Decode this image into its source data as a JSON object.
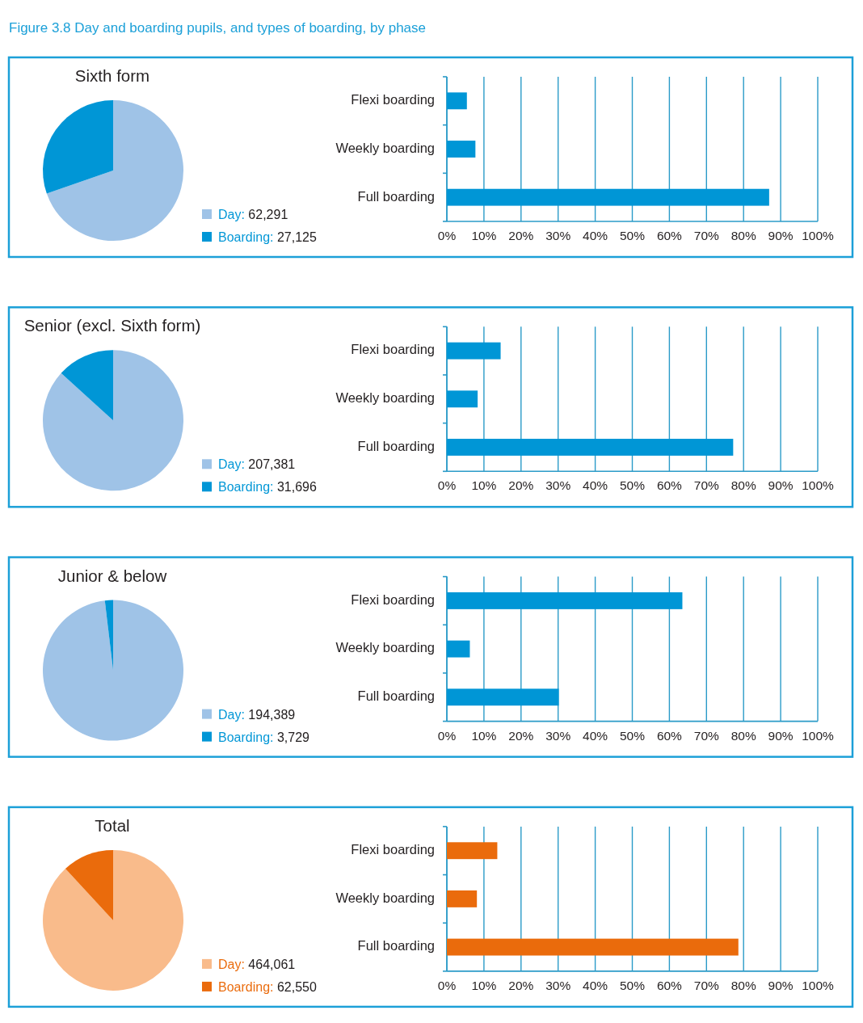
{
  "chart_data": [
    {
      "type": "pie",
      "title": "Sixth form",
      "annotations": [
        "Figure 3.8 Day and boarding pupils, and types of boarding, by phase"
      ],
      "categories": [
        "Day",
        "Boarding"
      ],
      "values": [
        62291,
        27125
      ],
      "colors": [
        "#9fc3e7",
        "#0096d6"
      ],
      "value_labels": [
        "62,291",
        "27,125"
      ],
      "legend": "bottom right"
    },
    {
      "type": "bar",
      "orientation": "horizontal",
      "categories": [
        "Flexi boarding",
        "Weekly boarding",
        "Full boarding"
      ],
      "values": [
        5.4,
        7.7,
        86.9
      ],
      "color": "#0096d6",
      "xlim": [
        0,
        100
      ],
      "xticks": [
        {
          "value": 0,
          "label": "0%"
        },
        {
          "value": 10,
          "label": "10%"
        },
        {
          "value": 20,
          "label": "20%"
        },
        {
          "value": 30,
          "label": "30%"
        },
        {
          "value": 40,
          "label": "40%"
        },
        {
          "value": 50,
          "label": "50%"
        },
        {
          "value": 60,
          "label": "60%"
        },
        {
          "value": 70,
          "label": "70%"
        },
        {
          "value": 80,
          "label": "80%"
        },
        {
          "value": 90,
          "label": "90%"
        },
        {
          "value": 100,
          "label": "100%"
        }
      ],
      "grid": "x"
    },
    {
      "type": "pie",
      "title": "Senior (excl. Sixth form)",
      "categories": [
        "Day",
        "Boarding"
      ],
      "values": [
        207381,
        31696
      ],
      "colors": [
        "#9fc3e7",
        "#0096d6"
      ],
      "value_labels": [
        "207,381",
        "31,696"
      ],
      "legend": "bottom right"
    },
    {
      "type": "bar",
      "orientation": "horizontal",
      "categories": [
        "Flexi boarding",
        "Weekly boarding",
        "Full boarding"
      ],
      "values": [
        14.5,
        8.3,
        77.2
      ],
      "color": "#0096d6",
      "xlim": [
        0,
        100
      ],
      "xticks": [
        {
          "value": 0,
          "label": "0%"
        },
        {
          "value": 10,
          "label": "10%"
        },
        {
          "value": 20,
          "label": "20%"
        },
        {
          "value": 30,
          "label": "30%"
        },
        {
          "value": 40,
          "label": "40%"
        },
        {
          "value": 50,
          "label": "50%"
        },
        {
          "value": 60,
          "label": "60%"
        },
        {
          "value": 70,
          "label": "70%"
        },
        {
          "value": 80,
          "label": "80%"
        },
        {
          "value": 90,
          "label": "90%"
        },
        {
          "value": 100,
          "label": "100%"
        }
      ],
      "grid": "x"
    },
    {
      "type": "pie",
      "title": "Junior & below",
      "categories": [
        "Day",
        "Boarding"
      ],
      "values": [
        194389,
        3729
      ],
      "colors": [
        "#9fc3e7",
        "#0096d6"
      ],
      "value_labels": [
        "194,389",
        "3,729"
      ],
      "legend": "bottom right"
    },
    {
      "type": "bar",
      "orientation": "horizontal",
      "categories": [
        "Flexi boarding",
        "Weekly boarding",
        "Full boarding"
      ],
      "values": [
        63.5,
        6.2,
        30.2
      ],
      "color": "#0096d6",
      "xlim": [
        0,
        100
      ],
      "xticks": [
        {
          "value": 0,
          "label": "0%"
        },
        {
          "value": 10,
          "label": "10%"
        },
        {
          "value": 20,
          "label": "20%"
        },
        {
          "value": 30,
          "label": "30%"
        },
        {
          "value": 40,
          "label": "40%"
        },
        {
          "value": 50,
          "label": "50%"
        },
        {
          "value": 60,
          "label": "60%"
        },
        {
          "value": 70,
          "label": "70%"
        },
        {
          "value": 80,
          "label": "80%"
        },
        {
          "value": 90,
          "label": "90%"
        },
        {
          "value": 100,
          "label": "100%"
        }
      ],
      "grid": "x"
    },
    {
      "type": "pie",
      "title": "Total",
      "categories": [
        "Day",
        "Boarding"
      ],
      "values": [
        464061,
        62550
      ],
      "colors": [
        "#f9bb8b",
        "#ea6b0c"
      ],
      "value_labels": [
        "464,061",
        "62,550"
      ],
      "legend": "bottom right"
    },
    {
      "type": "bar",
      "orientation": "horizontal",
      "categories": [
        "Flexi boarding",
        "Weekly boarding",
        "Full boarding"
      ],
      "values": [
        13.6,
        8.1,
        78.6
      ],
      "color": "#ea6b0c",
      "xlim": [
        0,
        100
      ],
      "xticks": [
        {
          "value": 0,
          "label": "0%"
        },
        {
          "value": 10,
          "label": "10%"
        },
        {
          "value": 20,
          "label": "20%"
        },
        {
          "value": 30,
          "label": "30%"
        },
        {
          "value": 40,
          "label": "40%"
        },
        {
          "value": 50,
          "label": "50%"
        },
        {
          "value": 60,
          "label": "60%"
        },
        {
          "value": 70,
          "label": "70%"
        },
        {
          "value": 80,
          "label": "80%"
        },
        {
          "value": 90,
          "label": "90%"
        },
        {
          "value": 100,
          "label": "100%"
        }
      ],
      "grid": "x"
    }
  ]
}
